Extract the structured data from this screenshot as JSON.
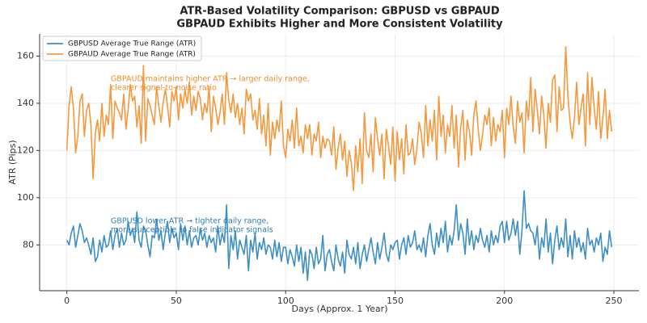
{
  "chart_data": {
    "type": "line",
    "title": "ATR-Based Volatility Comparison: GBPUSD vs GBPAUD",
    "subtitle": "GBPAUD Exhibits Higher and More Consistent Volatility",
    "x_label": "Days (Approx. 1 Year)",
    "y_label": "ATR (Pips)",
    "grid": true,
    "legend": "upper left",
    "xlim": [
      -12.45,
      261.45
    ],
    "xticks": [
      0,
      50,
      100,
      150,
      200,
      250
    ],
    "ylim": [
      60.6,
      169.4
    ],
    "yticks": [
      80,
      100,
      120,
      140,
      160
    ],
    "annotations": [
      {
        "lines": [
          "GBPAUD maintains higher ATR → larger daily range,",
          "clearer signal-to-noise ratio"
        ],
        "color": "#f28e2b"
      },
      {
        "lines": [
          "GBPUSD lower ATR → tighter daily range,",
          "more susceptible to false indicator signals"
        ],
        "color": "#2f7fb8"
      }
    ],
    "x": [
      0,
      1,
      2,
      3,
      4,
      5,
      6,
      7,
      8,
      9,
      10,
      11,
      12,
      13,
      14,
      15,
      16,
      17,
      18,
      19,
      20,
      21,
      22,
      23,
      24,
      25,
      26,
      27,
      28,
      29,
      30,
      31,
      32,
      33,
      34,
      35,
      36,
      37,
      38,
      39,
      40,
      41,
      42,
      43,
      44,
      45,
      46,
      47,
      48,
      49,
      50,
      51,
      52,
      53,
      54,
      55,
      56,
      57,
      58,
      59,
      60,
      61,
      62,
      63,
      64,
      65,
      66,
      67,
      68,
      69,
      70,
      71,
      72,
      73,
      74,
      75,
      76,
      77,
      78,
      79,
      80,
      81,
      82,
      83,
      84,
      85,
      86,
      87,
      88,
      89,
      90,
      91,
      92,
      93,
      94,
      95,
      96,
      97,
      98,
      99,
      100,
      101,
      102,
      103,
      104,
      105,
      106,
      107,
      108,
      109,
      110,
      111,
      112,
      113,
      114,
      115,
      116,
      117,
      118,
      119,
      120,
      121,
      122,
      123,
      124,
      125,
      126,
      127,
      128,
      129,
      130,
      131,
      132,
      133,
      134,
      135,
      136,
      137,
      138,
      139,
      140,
      141,
      142,
      143,
      144,
      145,
      146,
      147,
      148,
      149,
      150,
      151,
      152,
      153,
      154,
      155,
      156,
      157,
      158,
      159,
      160,
      161,
      162,
      163,
      164,
      165,
      166,
      167,
      168,
      169,
      170,
      171,
      172,
      173,
      174,
      175,
      176,
      177,
      178,
      179,
      180,
      181,
      182,
      183,
      184,
      185,
      186,
      187,
      188,
      189,
      190,
      191,
      192,
      193,
      194,
      195,
      196,
      197,
      198,
      199,
      200,
      201,
      202,
      203,
      204,
      205,
      206,
      207,
      208,
      209,
      210,
      211,
      212,
      213,
      214,
      215,
      216,
      217,
      218,
      219,
      220,
      221,
      222,
      223,
      224,
      225,
      226,
      227,
      228,
      229,
      230,
      231,
      232,
      233,
      234,
      235,
      236,
      237,
      238,
      239,
      240,
      241,
      242,
      243,
      244,
      245,
      246,
      247,
      248,
      249
    ],
    "series": [
      {
        "name": "GBPUSD Average True Range (ATR)",
        "color": "#3f8fc5",
        "values": [
          82,
          80,
          85,
          88,
          79,
          84,
          89,
          86,
          81,
          83,
          80,
          76,
          83,
          73,
          75,
          82,
          77,
          84,
          79,
          80,
          86,
          78,
          84,
          87,
          79,
          85,
          80,
          82,
          90,
          84,
          87,
          81,
          94,
          82,
          79,
          88,
          86,
          80,
          75,
          84,
          83,
          91,
          82,
          86,
          78,
          85,
          90,
          81,
          87,
          83,
          85,
          78,
          89,
          82,
          88,
          80,
          86,
          79,
          83,
          84,
          80,
          87,
          82,
          85,
          79,
          84,
          81,
          83,
          77,
          88,
          80,
          85,
          81,
          97,
          70,
          84,
          78,
          86,
          74,
          82,
          79,
          76,
          84,
          69,
          82,
          77,
          85,
          74,
          81,
          78,
          83,
          76,
          80,
          79,
          74,
          82,
          75,
          81,
          73,
          79,
          79,
          72,
          78,
          75,
          71,
          80,
          73,
          79,
          68,
          77,
          65,
          78,
          76,
          70,
          79,
          72,
          74,
          84,
          69,
          76,
          78,
          73,
          69,
          80,
          74,
          71,
          77,
          68,
          82,
          76,
          74,
          79,
          72,
          81,
          70,
          76,
          80,
          73,
          78,
          83,
          77,
          72,
          81,
          74,
          79,
          85,
          76,
          73,
          80,
          78,
          81,
          82,
          74,
          80,
          83,
          76,
          84,
          79,
          81,
          86,
          78,
          80,
          77,
          83,
          75,
          84,
          89,
          80,
          76,
          85,
          79,
          87,
          81,
          90,
          77,
          84,
          80,
          86,
          97,
          82,
          89,
          85,
          76,
          91,
          80,
          86,
          78,
          84,
          81,
          87,
          82,
          79,
          84,
          77,
          86,
          80,
          84,
          81,
          88,
          90,
          81,
          90,
          82,
          85,
          91,
          84,
          90,
          76,
          86,
          103,
          87,
          89,
          86,
          85,
          80,
          88,
          74,
          83,
          79,
          91,
          77,
          85,
          72,
          82,
          88,
          78,
          83,
          79,
          91,
          75,
          84,
          74,
          86,
          79,
          83,
          77,
          81,
          74,
          87,
          80,
          82,
          77,
          83,
          80,
          85,
          73,
          79,
          76,
          86,
          79
        ]
      },
      {
        "name": "GBPAUD Average True Range (ATR)",
        "color": "#f5993e",
        "values": [
          120,
          139,
          147,
          138,
          119,
          126,
          141,
          144,
          126,
          137,
          140,
          131,
          108,
          127,
          133,
          124,
          140,
          126,
          135,
          131,
          148,
          125,
          141,
          138,
          136,
          133,
          144,
          129,
          137,
          148,
          141,
          143,
          130,
          139,
          123,
          156,
          124,
          142,
          139,
          135,
          131,
          147,
          139,
          132,
          140,
          146,
          139,
          130,
          145,
          141,
          147,
          133,
          144,
          138,
          146,
          140,
          149,
          135,
          143,
          137,
          145,
          142,
          133,
          140,
          136,
          147,
          128,
          143,
          138,
          131,
          136,
          144,
          131,
          153,
          141,
          136,
          144,
          134,
          140,
          131,
          138,
          127,
          146,
          141,
          144,
          133,
          137,
          129,
          142,
          127,
          135,
          122,
          140,
          118,
          132,
          125,
          133,
          128,
          141,
          122,
          117,
          129,
          124,
          133,
          121,
          138,
          122,
          126,
          119,
          131,
          125,
          131,
          118,
          127,
          124,
          132,
          117,
          126,
          121,
          125,
          124,
          118,
          130,
          112,
          121,
          127,
          116,
          124,
          109,
          120,
          115,
          103,
          122,
          111,
          125,
          106,
          136,
          120,
          117,
          127,
          111,
          134,
          125,
          118,
          127,
          108,
          129,
          122,
          114,
          130,
          107,
          128,
          116,
          125,
          110,
          131,
          118,
          119,
          125,
          114,
          121,
          132,
          127,
          117,
          139,
          122,
          133,
          124,
          137,
          116,
          143,
          126,
          135,
          119,
          131,
          126,
          139,
          121,
          135,
          113,
          130,
          137,
          116,
          133,
          128,
          118,
          135,
          141,
          129,
          120,
          127,
          135,
          131,
          138,
          122,
          134,
          124,
          131,
          128,
          137,
          117,
          138,
          131,
          143,
          130,
          123,
          141,
          132,
          136,
          119,
          141,
          133,
          151,
          128,
          146,
          137,
          127,
          143,
          135,
          121,
          140,
          132,
          150,
          152,
          128,
          147,
          137,
          138,
          164,
          143,
          132,
          125,
          134,
          149,
          131,
          138,
          144,
          122,
          153,
          131,
          151,
          138,
          129,
          145,
          125,
          134,
          146,
          125,
          137,
          128
        ]
      }
    ]
  }
}
